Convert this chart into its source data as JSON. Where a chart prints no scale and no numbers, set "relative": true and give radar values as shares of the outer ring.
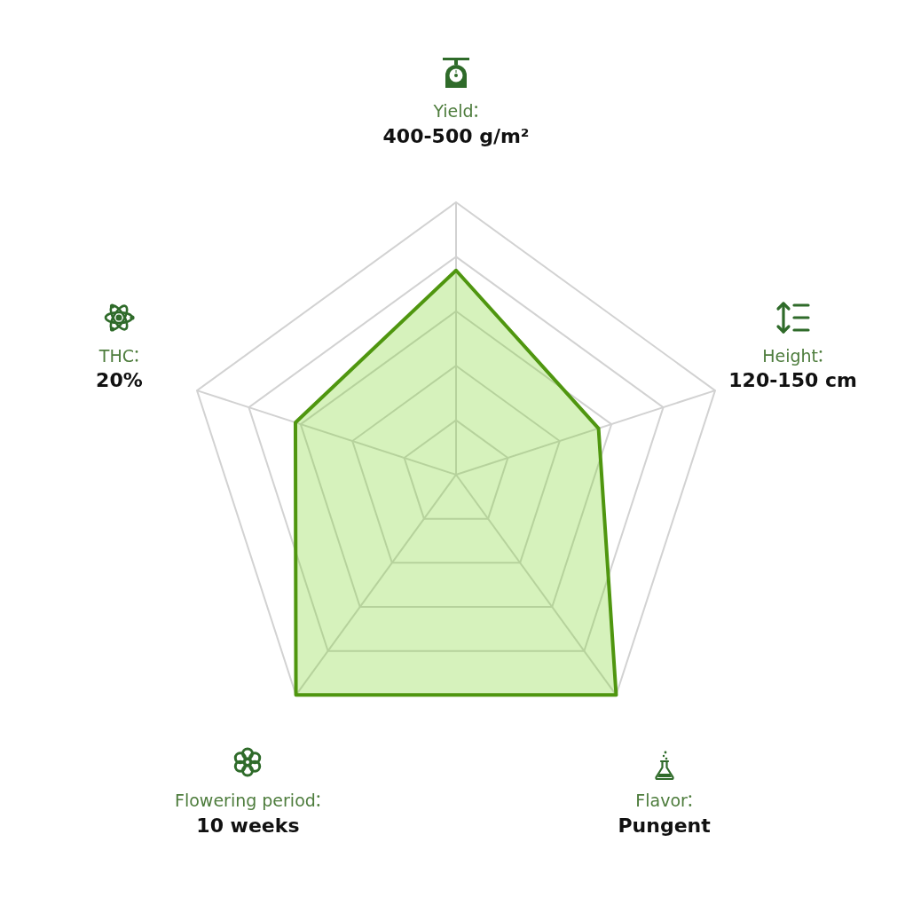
{
  "chart_data": {
    "type": "radar",
    "relative": true,
    "categories": [
      "Yield",
      "Height",
      "Flavor",
      "Flowering period",
      "THC"
    ],
    "values": [
      0.75,
      0.55,
      1,
      1,
      0.62
    ],
    "annotations": [
      {
        "text": "400-500 g/m²",
        "x": "Yield"
      },
      {
        "text": "120-150 cm",
        "x": "Height"
      },
      {
        "text": "Pungent",
        "x": "Flavor"
      },
      {
        "text": "10 weeks",
        "x": "Flowering period"
      },
      {
        "text": "20%",
        "x": "THC"
      }
    ],
    "color": "#4f960f",
    "grid": true,
    "marker": "none"
  }
}
